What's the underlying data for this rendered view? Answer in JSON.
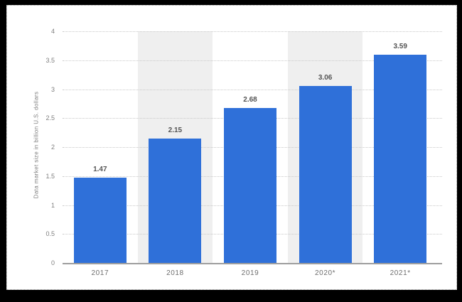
{
  "frame": {
    "outer_background": "#000000",
    "inner_background": "#ffffff",
    "border_style": "dotted"
  },
  "chart_data": {
    "type": "bar",
    "title": "",
    "categories": [
      "2017",
      "2018",
      "2019",
      "2020*",
      "2021*"
    ],
    "values": [
      1.47,
      2.15,
      2.68,
      3.06,
      3.59
    ],
    "value_labels": [
      "1.47",
      "2.15",
      "2.68",
      "3.06",
      "3.59"
    ],
    "xlabel": "",
    "ylabel": "Data market size in billion U.S. dollars",
    "ylim": [
      0,
      4
    ],
    "yticks": [
      "0",
      "0.5",
      "1",
      "1.5",
      "2",
      "2.5",
      "3",
      "3.5",
      "4"
    ],
    "grid": true,
    "legend": false,
    "highlighted_columns": [
      1,
      3
    ],
    "colors": {
      "bar": "#2f70d9",
      "column_band": "#efefef",
      "gridline": "#c9c9c9",
      "axis_line": "#9e9e9e",
      "tick_label": "#7f7f7f",
      "category_label": "#6e6e6e",
      "value_label": "#545454",
      "axis_title": "#7f7f7f"
    }
  }
}
